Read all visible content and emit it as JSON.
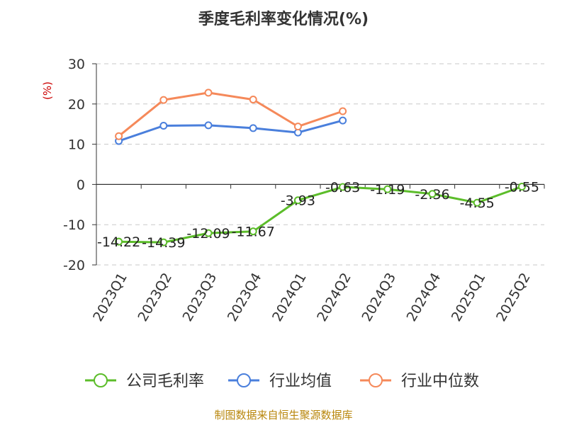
{
  "chart_data": {
    "type": "line",
    "title": "季度毛利率变化情况(%)",
    "ylabel": "(%)",
    "categories": [
      "2023Q1",
      "2023Q2",
      "2023Q3",
      "2023Q4",
      "2024Q1",
      "2024Q2",
      "2024Q3",
      "2024Q4",
      "2025Q1",
      "2025Q2"
    ],
    "ylim": [
      -20,
      30
    ],
    "yticks": [
      30,
      20,
      10,
      0,
      -10,
      -20
    ],
    "grid": true,
    "legend_position": "bottom",
    "series": [
      {
        "name": "公司毛利率",
        "color": "#5cbd2a",
        "values": [
          -14.22,
          -14.39,
          -12.09,
          -11.67,
          -3.93,
          -0.63,
          -1.19,
          -2.36,
          -4.55,
          -0.55
        ],
        "labels": [
          "-14.22",
          "-14.39",
          "-12.09",
          "-11.67",
          "-3.93",
          "-0.63",
          "-1.19",
          "-2.36",
          "-4.55",
          "-0.55"
        ]
      },
      {
        "name": "行业均值",
        "color": "#4a7fdc",
        "values": [
          10.8,
          14.6,
          14.7,
          14.0,
          12.9,
          15.9,
          null,
          null,
          null,
          null
        ]
      },
      {
        "name": "行业中位数",
        "color": "#f5895a",
        "values": [
          12.0,
          21.0,
          22.8,
          21.1,
          14.4,
          18.2,
          null,
          null,
          null,
          null
        ]
      }
    ]
  },
  "source": "制图数据来自恒生聚源数据库"
}
